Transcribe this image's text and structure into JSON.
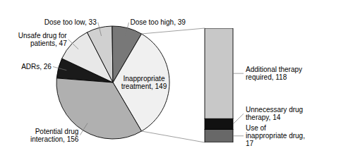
{
  "chart_data": [
    {
      "type": "pie",
      "categories": [
        "ADRs, 26",
        "Unsafe drug for\npatients, 47",
        "Dose too low, 33",
        "Dose too high, 39",
        "Inappropriate\ntreatment, 149",
        "Potential drug\ninteraction, 156"
      ],
      "values": [
        26,
        47,
        33,
        39,
        149,
        156
      ],
      "colors": [
        "#1a1a1a",
        "#e8e8e8",
        "#d0d0d0",
        "#787878",
        "#f0f0f0",
        "#b0b0b0"
      ]
    },
    {
      "type": "bar",
      "stacked": true,
      "categories": [
        null
      ],
      "series": [
        {
          "name": "Use of\ninappropriate drug,\n17",
          "color": "#686868",
          "values": [
            17
          ]
        },
        {
          "name": "Unnecessary drug\ntherapy, 14",
          "color": "#111111",
          "values": [
            14
          ]
        },
        {
          "name": "Additional therapy\nrequired, 118",
          "color": "#c8c8c8",
          "values": [
            118
          ]
        }
      ],
      "ylim": [
        0,
        149
      ],
      "tick_labels": false
    }
  ]
}
